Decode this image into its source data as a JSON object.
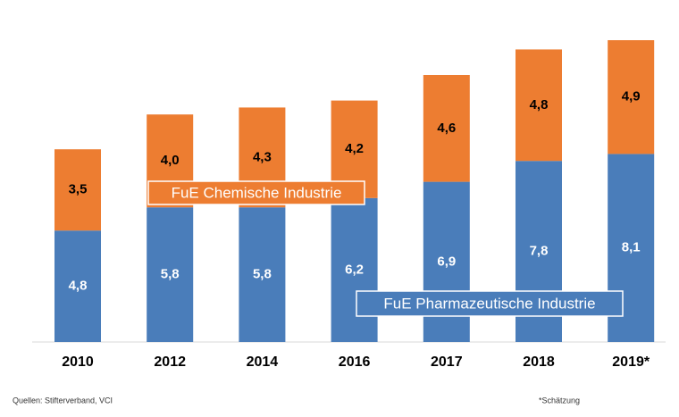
{
  "chart_data": {
    "type": "stacked_bar",
    "categories": [
      "2010",
      "2012",
      "2014",
      "2016",
      "2017",
      "2018",
      "2019*"
    ],
    "series": [
      {
        "name": "FuE Pharmazeutische Industrie",
        "color": "#4a7dba",
        "values": [
          4.8,
          5.8,
          5.8,
          6.2,
          6.9,
          7.8,
          8.1
        ],
        "value_labels": [
          "4,8",
          "5,8",
          "5,8",
          "6,2",
          "6,9",
          "7,8",
          "8,1"
        ]
      },
      {
        "name": "FuE Chemische Industrie",
        "color": "#ed7d31",
        "values": [
          3.5,
          4.0,
          4.3,
          4.2,
          4.6,
          4.8,
          4.9
        ],
        "value_labels": [
          "3,5",
          "4,0",
          "4,3",
          "4,2",
          "4,6",
          "4,8",
          "4,9"
        ]
      }
    ],
    "source": "Quellen: Stifterverband, VCI",
    "footnote": "*Schätzung"
  }
}
